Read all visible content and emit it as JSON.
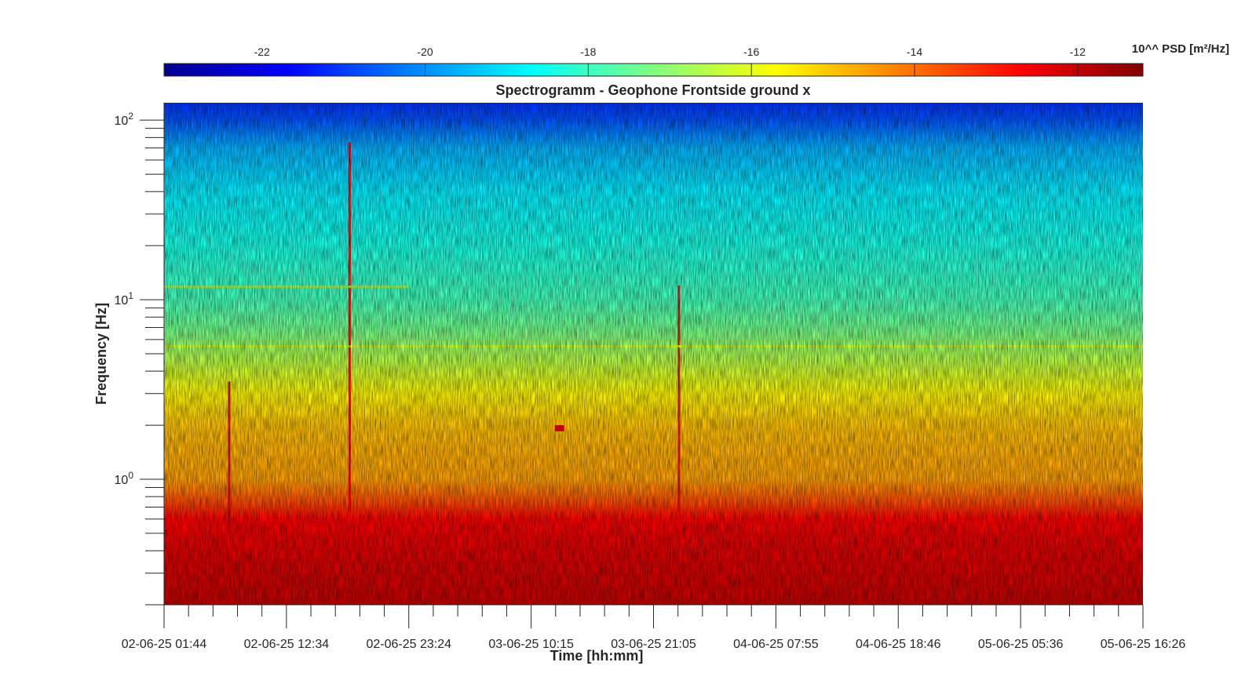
{
  "chart_data": {
    "type": "heatmap",
    "title": "Spectrogramm - Geophone Frontside ground x",
    "xlabel": "Time [hh:mm]",
    "ylabel": "Frequency [Hz]",
    "x_tick_labels": [
      "02-06-25 01:44",
      "02-06-25 12:34",
      "02-06-25 23:24",
      "03-06-25 10:15",
      "03-06-25 21:05",
      "04-06-25 07:55",
      "04-06-25 18:46",
      "05-06-25 05:36",
      "05-06-25 16:26"
    ],
    "xlim": [
      "02-06-25 01:44",
      "05-06-25 16:26"
    ],
    "y_scale": "log",
    "ylim": [
      0.2,
      125
    ],
    "y_ticks": [
      {
        "value": 1,
        "base": "10",
        "exp": "0"
      },
      {
        "value": 10,
        "base": "10",
        "exp": "1"
      },
      {
        "value": 100,
        "base": "10",
        "exp": "2"
      }
    ],
    "colorbar": {
      "label": "10^^ PSD [m²/Hz]",
      "range": [
        -23.2,
        -11.2
      ],
      "ticks": [
        -22,
        -20,
        -18,
        -16,
        -14,
        -12
      ],
      "tick_labels": [
        "-22",
        "-20",
        "-18",
        "-16",
        "-14",
        "-12"
      ],
      "colormap": "jet",
      "position": "top"
    },
    "psd_profile_log10": {
      "frequency_hz": [
        0.2,
        0.3,
        0.45,
        0.6,
        0.75,
        1.0,
        1.5,
        2.0,
        3.0,
        5.0,
        7.0,
        10,
        20,
        40,
        70,
        100,
        125
      ],
      "level": [
        -12.0,
        -12.2,
        -12.4,
        -12.7,
        -13.6,
        -14.6,
        -14.8,
        -15.0,
        -15.6,
        -16.7,
        -17.4,
        -17.9,
        -18.4,
        -18.9,
        -19.6,
        -20.7,
        -21.1
      ]
    },
    "features": [
      {
        "kind": "transient",
        "time": "02-06-25 07:30",
        "f_low_hz": 0.5,
        "f_high_hz": 3.5,
        "level": -12.3
      },
      {
        "kind": "transient",
        "time": "02-06-25 18:10",
        "f_low_hz": 0.5,
        "f_high_hz": 75,
        "level": -12.6
      },
      {
        "kind": "transient",
        "time": "03-06-25 23:20",
        "f_low_hz": 0.6,
        "f_high_hz": 12,
        "level": -12.6
      },
      {
        "kind": "burst",
        "time": "03-06-25 12:45",
        "f_low_hz": 1.85,
        "f_high_hz": 2.0,
        "level": -12.5
      },
      {
        "kind": "narrowband",
        "f_hz": 5.5,
        "from": "02-06-25 01:44",
        "to": "05-06-25 16:26",
        "level": -16.2
      },
      {
        "kind": "narrowband",
        "f_hz": 11.8,
        "from": "02-06-25 01:44",
        "to": "02-06-25 23:24",
        "level": -16.6
      }
    ]
  }
}
